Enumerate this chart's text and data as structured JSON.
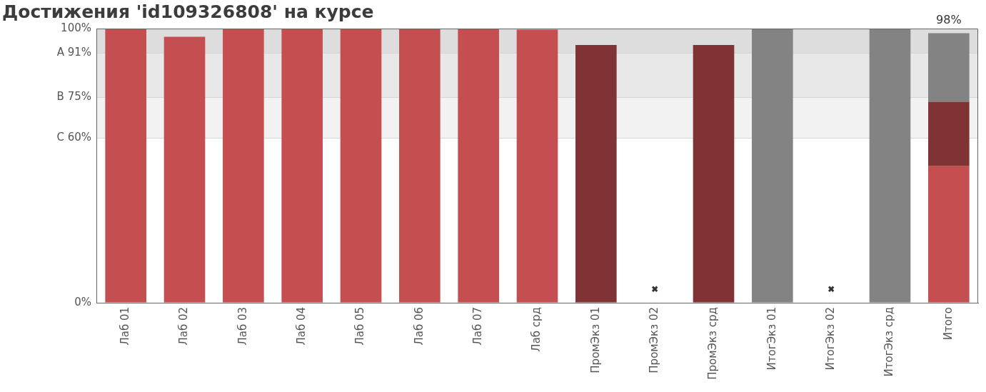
{
  "chart_data": {
    "type": "bar",
    "title": "Достижения 'id109326808' на курсе",
    "categories": [
      "Лаб 01",
      "Лаб 02",
      "Лаб 03",
      "Лаб 04",
      "Лаб 05",
      "Лаб 06",
      "Лаб 07",
      "Лаб срд",
      "ПромЭкз 01",
      "ПромЭкз 02",
      "ПромЭкз срд",
      "ИтогЭкз 01",
      "ИтогЭкз 02",
      "ИтогЭкз срд",
      "Итого"
    ],
    "series": [
      {
        "color": "#c54f50",
        "values": [
          100,
          97,
          100,
          100,
          100,
          100,
          100,
          99.6,
          null,
          null,
          null,
          null,
          null,
          null,
          49.8
        ]
      },
      {
        "color": "#7f3334",
        "values": [
          null,
          null,
          null,
          null,
          null,
          null,
          null,
          null,
          94,
          null,
          94,
          null,
          null,
          null,
          23.5
        ]
      },
      {
        "color": "#838383",
        "values": [
          null,
          null,
          null,
          null,
          null,
          null,
          null,
          null,
          null,
          null,
          null,
          100,
          null,
          100,
          25
        ]
      },
      {
        "type": "scatter",
        "color": "#333333",
        "marker": "cross",
        "x": [
          "ПромЭкз 02",
          "ИтогЭкз 02"
        ],
        "values": [
          5,
          5
        ]
      }
    ],
    "stacked": true,
    "ylim": [
      0,
      100
    ],
    "yticks": [
      {
        "value": 0,
        "label": "0%"
      },
      {
        "value": 60,
        "label": "C 60%"
      },
      {
        "value": 75,
        "label": "B 75%"
      },
      {
        "value": 91,
        "label": "A 91%"
      },
      {
        "value": 100,
        "label": "100%"
      }
    ],
    "bands": [
      {
        "axis": "y",
        "from": 60,
        "to": 75,
        "color": "#f2f2f2"
      },
      {
        "axis": "y",
        "from": 75,
        "to": 91,
        "color": "#e8e8e8"
      },
      {
        "axis": "y",
        "from": 91,
        "to": 100,
        "color": "#dddddd"
      }
    ],
    "grid": "y",
    "totals": [
      null,
      null,
      null,
      null,
      null,
      null,
      null,
      null,
      null,
      null,
      null,
      null,
      null,
      null,
      "98%"
    ]
  }
}
